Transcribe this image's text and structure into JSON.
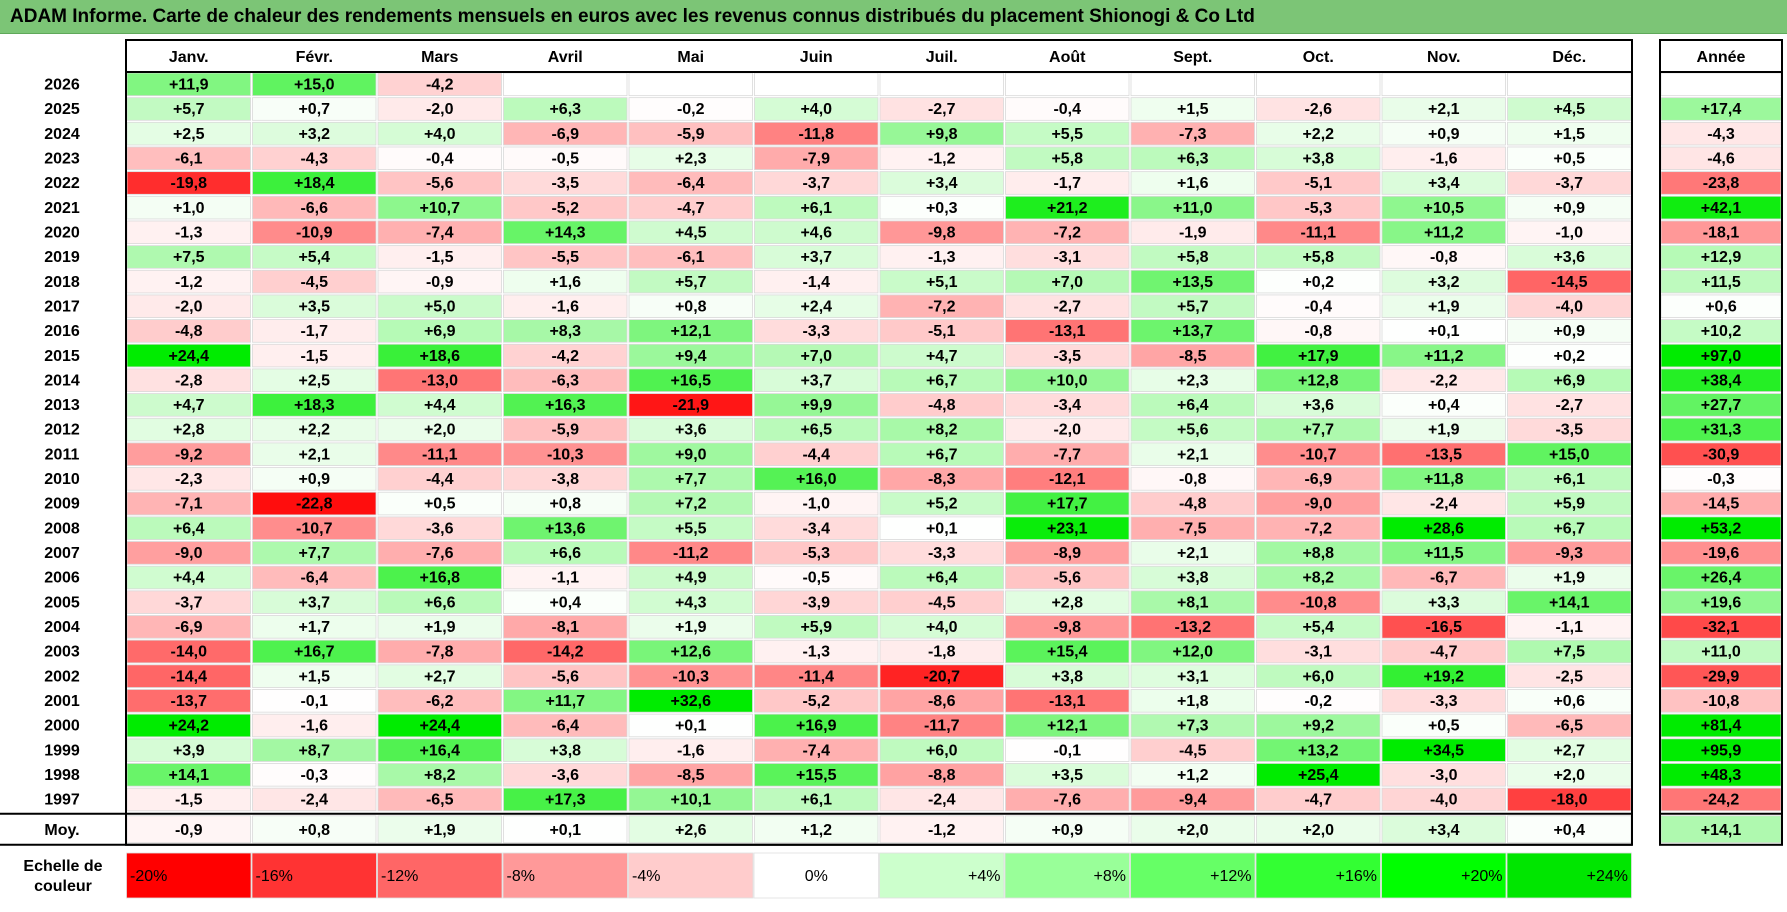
{
  "chart_data": {
    "type": "heatmap",
    "title": "ADAM Informe. Carte de chaleur des rendements mensuels en euros avec les revenus connus distribués du placement Shionogi & Co Ltd",
    "columns": [
      "Janv.",
      "Févr.",
      "Mars",
      "Avril",
      "Mai",
      "Juin",
      "Juil.",
      "Août",
      "Sept.",
      "Oct.",
      "Nov.",
      "Déc."
    ],
    "year_header": "Année",
    "rows": [
      {
        "year": "2026",
        "values": [
          "+11,9",
          "+15,0",
          "-4,2",
          "",
          "",
          "",
          "",
          "",
          "",
          "",
          "",
          ""
        ],
        "annual": ""
      },
      {
        "year": "2025",
        "values": [
          "+5,7",
          "+0,7",
          "-2,0",
          "+6,3",
          "-0,2",
          "+4,0",
          "-2,7",
          "-0,4",
          "+1,5",
          "-2,6",
          "+2,1",
          "+4,5"
        ],
        "annual": "+17,4"
      },
      {
        "year": "2024",
        "values": [
          "+2,5",
          "+3,2",
          "+4,0",
          "-6,9",
          "-5,9",
          "-11,8",
          "+9,8",
          "+5,5",
          "-7,3",
          "+2,2",
          "+0,9",
          "+1,5"
        ],
        "annual": "-4,3"
      },
      {
        "year": "2023",
        "values": [
          "-6,1",
          "-4,3",
          "-0,4",
          "-0,5",
          "+2,3",
          "-7,9",
          "-1,2",
          "+5,8",
          "+6,3",
          "+3,8",
          "-1,6",
          "+0,5"
        ],
        "annual": "-4,6"
      },
      {
        "year": "2022",
        "values": [
          "-19,8",
          "+18,4",
          "-5,6",
          "-3,5",
          "-6,4",
          "-3,7",
          "+3,4",
          "-1,7",
          "+1,6",
          "-5,1",
          "+3,4",
          "-3,7"
        ],
        "annual": "-23,8"
      },
      {
        "year": "2021",
        "values": [
          "+1,0",
          "-6,6",
          "+10,7",
          "-5,2",
          "-4,7",
          "+6,1",
          "+0,3",
          "+21,2",
          "+11,0",
          "-5,3",
          "+10,5",
          "+0,9"
        ],
        "annual": "+42,1"
      },
      {
        "year": "2020",
        "values": [
          "-1,3",
          "-10,9",
          "-7,4",
          "+14,3",
          "+4,5",
          "+4,6",
          "-9,8",
          "-7,2",
          "-1,9",
          "-11,1",
          "+11,2",
          "-1,0"
        ],
        "annual": "-18,1"
      },
      {
        "year": "2019",
        "values": [
          "+7,5",
          "+5,4",
          "-1,5",
          "-5,5",
          "-6,1",
          "+3,7",
          "-1,3",
          "-3,1",
          "+5,8",
          "+5,8",
          "-0,8",
          "+3,6"
        ],
        "annual": "+12,9"
      },
      {
        "year": "2018",
        "values": [
          "-1,2",
          "-4,5",
          "-0,9",
          "+1,6",
          "+5,7",
          "-1,4",
          "+5,1",
          "+7,0",
          "+13,5",
          "+0,2",
          "+3,2",
          "-14,5"
        ],
        "annual": "+11,5"
      },
      {
        "year": "2017",
        "values": [
          "-2,0",
          "+3,5",
          "+5,0",
          "-1,6",
          "+0,8",
          "+2,4",
          "-7,2",
          "-2,7",
          "+5,7",
          "-0,4",
          "+1,9",
          "-4,0"
        ],
        "annual": "+0,6"
      },
      {
        "year": "2016",
        "values": [
          "-4,8",
          "-1,7",
          "+6,9",
          "+8,3",
          "+12,1",
          "-3,3",
          "-5,1",
          "-13,1",
          "+13,7",
          "-0,8",
          "+0,1",
          "+0,9"
        ],
        "annual": "+10,2"
      },
      {
        "year": "2015",
        "values": [
          "+24,4",
          "-1,5",
          "+18,6",
          "-4,2",
          "+9,4",
          "+7,0",
          "+4,7",
          "-3,5",
          "-8,5",
          "+17,9",
          "+11,2",
          "+0,2"
        ],
        "annual": "+97,0"
      },
      {
        "year": "2014",
        "values": [
          "-2,8",
          "+2,5",
          "-13,0",
          "-6,3",
          "+16,5",
          "+3,7",
          "+6,7",
          "+10,0",
          "+2,3",
          "+12,8",
          "-2,2",
          "+6,9"
        ],
        "annual": "+38,4"
      },
      {
        "year": "2013",
        "values": [
          "+4,7",
          "+18,3",
          "+4,4",
          "+16,3",
          "-21,9",
          "+9,9",
          "-4,8",
          "-3,4",
          "+6,4",
          "+3,6",
          "+0,4",
          "-2,7"
        ],
        "annual": "+27,7"
      },
      {
        "year": "2012",
        "values": [
          "+2,8",
          "+2,2",
          "+2,0",
          "-5,9",
          "+3,6",
          "+6,5",
          "+8,2",
          "-2,0",
          "+5,6",
          "+7,7",
          "+1,9",
          "-3,5"
        ],
        "annual": "+31,3"
      },
      {
        "year": "2011",
        "values": [
          "-9,2",
          "+2,1",
          "-11,1",
          "-10,3",
          "+9,0",
          "-4,4",
          "+6,7",
          "-7,7",
          "+2,1",
          "-10,7",
          "-13,5",
          "+15,0"
        ],
        "annual": "-30,9"
      },
      {
        "year": "2010",
        "values": [
          "-2,3",
          "+0,9",
          "-4,4",
          "-3,8",
          "+7,7",
          "+16,0",
          "-8,3",
          "-12,1",
          "-0,8",
          "-6,9",
          "+11,8",
          "+6,1"
        ],
        "annual": "-0,3"
      },
      {
        "year": "2009",
        "values": [
          "-7,1",
          "-22,8",
          "+0,5",
          "+0,8",
          "+7,2",
          "-1,0",
          "+5,2",
          "+17,7",
          "-4,8",
          "-9,0",
          "-2,4",
          "+5,9"
        ],
        "annual": "-14,5"
      },
      {
        "year": "2008",
        "values": [
          "+6,4",
          "-10,7",
          "-3,6",
          "+13,6",
          "+5,5",
          "-3,4",
          "+0,1",
          "+23,1",
          "-7,5",
          "-7,2",
          "+28,6",
          "+6,7"
        ],
        "annual": "+53,2"
      },
      {
        "year": "2007",
        "values": [
          "-9,0",
          "+7,7",
          "-7,6",
          "+6,6",
          "-11,2",
          "-5,3",
          "-3,3",
          "-8,9",
          "+2,1",
          "+8,8",
          "+11,5",
          "-9,3"
        ],
        "annual": "-19,6"
      },
      {
        "year": "2006",
        "values": [
          "+4,4",
          "-6,4",
          "+16,8",
          "-1,1",
          "+4,9",
          "-0,5",
          "+6,4",
          "-5,6",
          "+3,8",
          "+8,2",
          "-6,7",
          "+1,9"
        ],
        "annual": "+26,4"
      },
      {
        "year": "2005",
        "values": [
          "-3,7",
          "+3,7",
          "+6,6",
          "+0,4",
          "+4,3",
          "-3,9",
          "-4,5",
          "+2,8",
          "+8,1",
          "-10,8",
          "+3,3",
          "+14,1"
        ],
        "annual": "+19,6"
      },
      {
        "year": "2004",
        "values": [
          "-6,9",
          "+1,7",
          "+1,9",
          "-8,1",
          "+1,9",
          "+5,9",
          "+4,0",
          "-9,8",
          "-13,2",
          "+5,4",
          "-16,5",
          "-1,1"
        ],
        "annual": "-32,1"
      },
      {
        "year": "2003",
        "values": [
          "-14,0",
          "+16,7",
          "-7,8",
          "-14,2",
          "+12,6",
          "-1,3",
          "-1,8",
          "+15,4",
          "+12,0",
          "-3,1",
          "-4,7",
          "+7,5"
        ],
        "annual": "+11,0"
      },
      {
        "year": "2002",
        "values": [
          "-14,4",
          "+1,5",
          "+2,7",
          "-5,6",
          "-10,3",
          "-11,4",
          "-20,7",
          "+3,8",
          "+3,1",
          "+6,0",
          "+19,2",
          "-2,5"
        ],
        "annual": "-29,9"
      },
      {
        "year": "2001",
        "values": [
          "-13,7",
          "-0,1",
          "-6,2",
          "+11,7",
          "+32,6",
          "-5,2",
          "-8,6",
          "-13,1",
          "+1,8",
          "-0,2",
          "-3,3",
          "+0,6"
        ],
        "annual": "-10,8"
      },
      {
        "year": "2000",
        "values": [
          "+24,2",
          "-1,6",
          "+24,4",
          "-6,4",
          "+0,1",
          "+16,9",
          "-11,7",
          "+12,1",
          "+7,3",
          "+9,2",
          "+0,5",
          "-6,5"
        ],
        "annual": "+81,4"
      },
      {
        "year": "1999",
        "values": [
          "+3,9",
          "+8,7",
          "+16,4",
          "+3,8",
          "-1,6",
          "-7,4",
          "+6,0",
          "-0,1",
          "-4,5",
          "+13,2",
          "+34,5",
          "+2,7"
        ],
        "annual": "+95,9"
      },
      {
        "year": "1998",
        "values": [
          "+14,1",
          "-0,3",
          "+8,2",
          "-3,6",
          "-8,5",
          "+15,5",
          "-8,8",
          "+3,5",
          "+1,2",
          "+25,4",
          "-3,0",
          "+2,0"
        ],
        "annual": "+48,3"
      },
      {
        "year": "1997",
        "values": [
          "-1,5",
          "-2,4",
          "-6,5",
          "+17,3",
          "+10,1",
          "+6,1",
          "-2,4",
          "-7,6",
          "-9,4",
          "-4,7",
          "-4,0",
          "-18,0"
        ],
        "annual": "-24,2"
      }
    ],
    "average": {
      "label": "Moy.",
      "values": [
        "-0,9",
        "+0,8",
        "+1,9",
        "+0,1",
        "+2,6",
        "+1,2",
        "-1,2",
        "+0,9",
        "+2,0",
        "+2,0",
        "+3,4",
        "+0,4"
      ],
      "annual": "+14,1"
    },
    "scale": {
      "label": "Echelle de couleur",
      "entries": [
        {
          "label": "-20%",
          "color": "#ff0000"
        },
        {
          "label": "-16%",
          "color": "#ff3333"
        },
        {
          "label": "-12%",
          "color": "#ff6666"
        },
        {
          "label": "-8%",
          "color": "#ff9999"
        },
        {
          "label": "-4%",
          "color": "#ffcccc"
        },
        {
          "label": "0%",
          "color": "#ffffff"
        },
        {
          "label": "+4%",
          "color": "#ccffcc"
        },
        {
          "label": "+8%",
          "color": "#99ff99"
        },
        {
          "label": "+12%",
          "color": "#66ff66"
        },
        {
          "label": "+16%",
          "color": "#33ff33"
        },
        {
          "label": "+20%",
          "color": "#00ff00"
        },
        {
          "label": "+24%",
          "color": "#00e600"
        }
      ]
    }
  }
}
